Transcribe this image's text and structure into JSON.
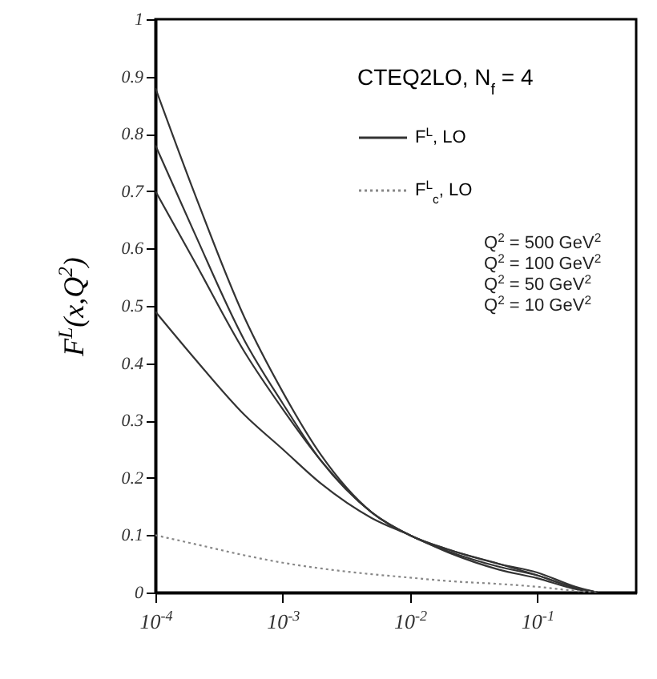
{
  "chart_data": {
    "type": "line",
    "ylabel": "F$^{L}$(x,Q$^{2}$)",
    "legend_title": "CTEQ2LO, N$_{f}$ = 4",
    "annotations": [
      "Q$^{2}$ = 500 GeV$^{2}$",
      "Q$^{2}$ = 100 GeV$^{2}$",
      "Q$^{2}$ =  50 GeV$^{2}$",
      "Q$^{2}$ =  10 GeV$^{2}$"
    ],
    "x": [
      0.0001,
      0.0002,
      0.0005,
      0.001,
      0.002,
      0.005,
      0.01,
      0.02,
      0.05,
      0.1,
      0.2,
      0.3
    ],
    "series": [
      {
        "name": "F$^{L}$, LO",
        "color": "#333333",
        "line_style": "solid",
        "values": [
          0.88,
          0.7,
          0.48,
          0.35,
          0.24,
          0.14,
          0.1,
          0.075,
          0.05,
          0.03,
          0.008,
          0
        ]
      },
      {
        "color": "#333333",
        "line_style": "solid",
        "values": [
          0.78,
          0.63,
          0.44,
          0.33,
          0.23,
          0.14,
          0.1,
          0.075,
          0.05,
          0.035,
          0.01,
          0
        ]
      },
      {
        "color": "#333333",
        "line_style": "solid",
        "values": [
          0.7,
          0.58,
          0.42,
          0.32,
          0.23,
          0.14,
          0.1,
          0.072,
          0.045,
          0.03,
          0.008,
          0
        ]
      },
      {
        "color": "#333333",
        "line_style": "solid",
        "values": [
          0.49,
          0.41,
          0.31,
          0.25,
          0.19,
          0.13,
          0.1,
          0.07,
          0.04,
          0.025,
          0.006,
          0
        ]
      },
      {
        "name": "F$^{L}$$_{c}$, LO",
        "color": "#888888",
        "line_style": "dotted",
        "values": [
          0.1,
          0.085,
          0.065,
          0.052,
          0.042,
          0.032,
          0.026,
          0.02,
          0.015,
          0.01,
          0.003,
          0
        ]
      }
    ],
    "log": "x",
    "xlim": [
      0.0001,
      0.6
    ],
    "xticks": [
      {
        "value": 0.0001,
        "label": "10$^{-4}$"
      },
      {
        "value": 0.001,
        "label": "10$^{-3}$"
      },
      {
        "value": 0.01,
        "label": "10$^{-2}$"
      },
      {
        "value": 0.1,
        "label": "10$^{-1}$"
      }
    ],
    "ylim": [
      0,
      1
    ],
    "yticks": [
      0,
      0.1,
      0.2,
      0.3,
      0.4,
      0.5,
      0.6,
      0.7,
      0.8,
      0.9,
      1
    ],
    "legend": "top right"
  }
}
